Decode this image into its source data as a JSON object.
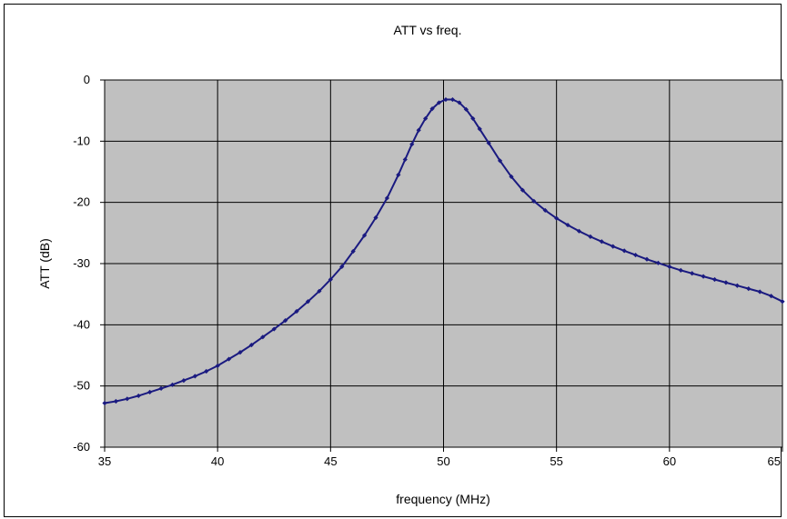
{
  "chart_data": {
    "type": "line",
    "title": "ATT vs freq.",
    "xlabel": "frequency (MHz)",
    "ylabel": "ATT (dB)",
    "xlim": [
      35,
      65
    ],
    "ylim": [
      -60,
      0
    ],
    "xticks": [
      35,
      40,
      45,
      50,
      55,
      60,
      65
    ],
    "yticks": [
      0,
      -10,
      -20,
      -30,
      -40,
      -50,
      -60
    ],
    "grid": true,
    "legend": "none",
    "colors": {
      "plot_bg": "#c0c0c0",
      "series": "#1a1a80",
      "grid": "#000000"
    },
    "series": [
      {
        "marker": "diamond",
        "x": [
          35.0,
          35.5,
          36.0,
          36.5,
          37.0,
          37.5,
          38.0,
          38.5,
          39.0,
          39.5,
          40.0,
          40.5,
          41.0,
          41.5,
          42.0,
          42.5,
          43.0,
          43.5,
          44.0,
          44.5,
          45.0,
          45.5,
          46.0,
          46.5,
          47.0,
          47.5,
          48.0,
          48.3,
          48.6,
          48.9,
          49.2,
          49.5,
          49.8,
          50.1,
          50.4,
          50.7,
          51.0,
          51.3,
          51.6,
          52.0,
          52.5,
          53.0,
          53.5,
          54.0,
          54.5,
          55.0,
          55.5,
          56.0,
          56.5,
          57.0,
          57.5,
          58.0,
          58.5,
          59.0,
          59.5,
          60.0,
          60.5,
          61.0,
          61.5,
          62.0,
          62.5,
          63.0,
          63.5,
          64.0,
          64.5,
          65.0
        ],
        "y": [
          -52.8,
          -52.5,
          -52.1,
          -51.6,
          -51.0,
          -50.4,
          -49.8,
          -49.1,
          -48.4,
          -47.6,
          -46.7,
          -45.6,
          -44.5,
          -43.3,
          -42.0,
          -40.7,
          -39.3,
          -37.8,
          -36.2,
          -34.5,
          -32.6,
          -30.5,
          -28.0,
          -25.4,
          -22.5,
          -19.3,
          -15.5,
          -13.0,
          -10.5,
          -8.2,
          -6.3,
          -4.7,
          -3.7,
          -3.2,
          -3.2,
          -3.7,
          -4.8,
          -6.3,
          -8.0,
          -10.3,
          -13.2,
          -15.8,
          -18.0,
          -19.8,
          -21.3,
          -22.6,
          -23.7,
          -24.7,
          -25.6,
          -26.4,
          -27.2,
          -27.9,
          -28.6,
          -29.3,
          -29.9,
          -30.5,
          -31.1,
          -31.6,
          -32.1,
          -32.6,
          -33.1,
          -33.6,
          -34.1,
          -34.6,
          -35.3,
          -36.2
        ]
      }
    ]
  }
}
